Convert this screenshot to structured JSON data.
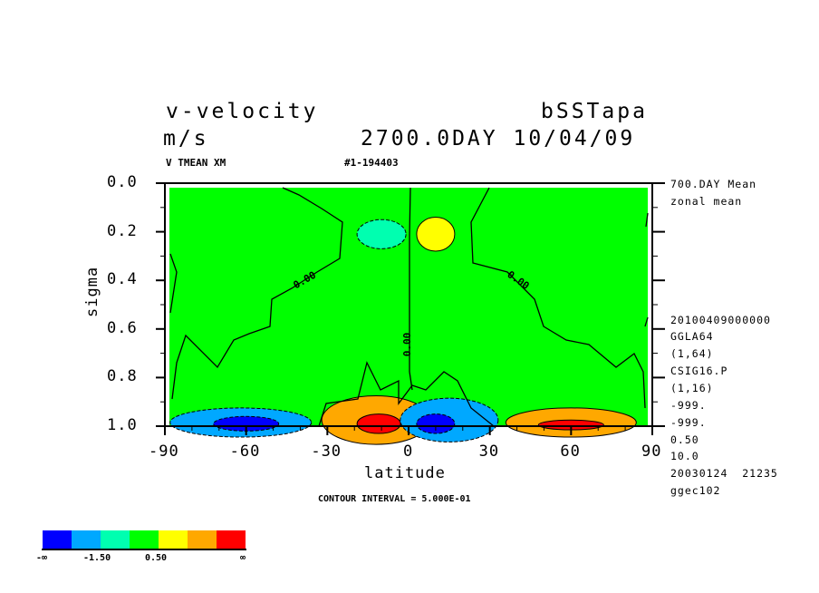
{
  "header": {
    "title_left": "v-velocity",
    "title_right": "bSSTapa",
    "units": "m/s",
    "time": "2700.0DAY 10/04/09",
    "var_label": "V TMEAN XM",
    "run_id": "#1-194403"
  },
  "side_info": [
    "700.DAY Mean",
    "zonal mean",
    "20100409000000",
    "GGLA64",
    "(1,64)",
    "CSIG16.P",
    "(1,16)",
    "-999.",
    "-999.",
    "0.50",
    "10.0",
    "20030124  21235",
    "ggec102"
  ],
  "contour_interval": "CONTOUR INTERVAL = 5.000E-01",
  "colorbar": {
    "colors": [
      "#0000ff",
      "#00a8ff",
      "#00ffb0",
      "#00ff00",
      "#ffff00",
      "#ffa800",
      "#ff0000"
    ],
    "labels": [
      "-∞",
      "-1.50",
      "0.50",
      "∞"
    ]
  },
  "chart_data": {
    "type": "heatmap",
    "subtype": "filled contour",
    "xlabel": "latitude",
    "ylabel": "sigma",
    "xlim": [
      -90,
      90
    ],
    "ylim": [
      1.0,
      0.0
    ],
    "xticks": [
      "-90",
      "-60",
      "-30",
      "0",
      "30",
      "60",
      "90"
    ],
    "xtick_values": [
      -90,
      -60,
      -30,
      0,
      30,
      60,
      90
    ],
    "yticks": [
      "0.0",
      "0.2",
      "0.4",
      "0.6",
      "0.8",
      "1.0"
    ],
    "ytick_values": [
      0.0,
      0.2,
      0.4,
      0.6,
      0.8,
      1.0
    ],
    "contour_labels": [
      "0.00",
      "0.00",
      "0.00"
    ],
    "features": [
      {
        "lat": -10,
        "sigma": 0.21,
        "value": -0.5,
        "dlat": 9,
        "dsig": 0.06
      },
      {
        "lat": 10,
        "sigma": 0.21,
        "value": 0.5,
        "dlat": 7,
        "dsig": 0.07
      },
      {
        "lat": -62,
        "sigma": 0.985,
        "value": -1.5,
        "dlat": 26,
        "dsig": 0.06
      },
      {
        "lat": -60,
        "sigma": 0.99,
        "value": -2.0,
        "dlat": 12,
        "dsig": 0.03
      },
      {
        "lat": -12,
        "sigma": 0.975,
        "value": 1.5,
        "dlat": 20,
        "dsig": 0.1
      },
      {
        "lat": -11,
        "sigma": 0.99,
        "value": 2.5,
        "dlat": 8,
        "dsig": 0.04
      },
      {
        "lat": 15,
        "sigma": 0.975,
        "value": -1.5,
        "dlat": 18,
        "dsig": 0.09
      },
      {
        "lat": 10,
        "sigma": 0.99,
        "value": -2.5,
        "dlat": 7,
        "dsig": 0.04
      },
      {
        "lat": 60,
        "sigma": 0.985,
        "value": 1.5,
        "dlat": 24,
        "dsig": 0.06
      },
      {
        "lat": 60,
        "sigma": 0.995,
        "value": 2.0,
        "dlat": 12,
        "dsig": 0.02
      }
    ]
  }
}
